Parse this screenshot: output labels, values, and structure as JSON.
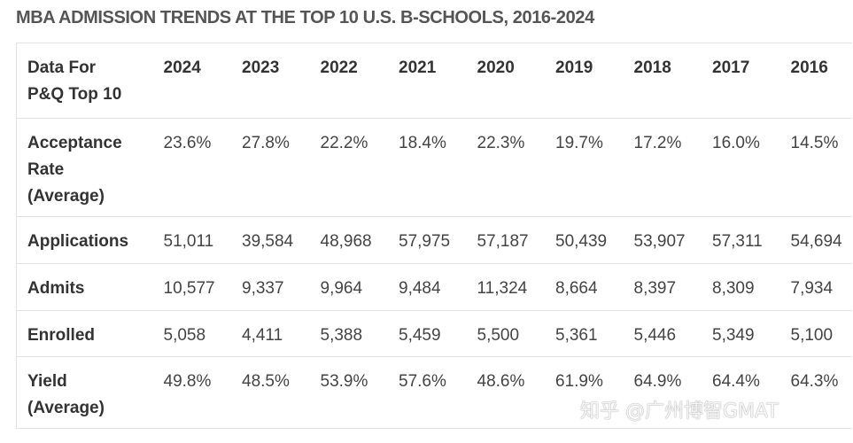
{
  "title": "MBA ADMISSION TRENDS AT THE TOP 10 U.S. B-SCHOOLS, 2016-2024",
  "table": {
    "header_label": [
      "Data For",
      "P&Q Top 10"
    ],
    "years": [
      "2024",
      "2023",
      "2022",
      "2021",
      "2020",
      "2019",
      "2018",
      "2017",
      "2016"
    ],
    "rows": [
      {
        "label": [
          "Acceptance",
          "Rate",
          "(Average)"
        ],
        "values": [
          "23.6%",
          "27.8%",
          "22.2%",
          "18.4%",
          "22.3%",
          "19.7%",
          "17.2%",
          "16.0%",
          "14.5%"
        ]
      },
      {
        "label": [
          "Applications"
        ],
        "values": [
          "51,011",
          "39,584",
          "48,968",
          "57,975",
          "57,187",
          "50,439",
          "53,907",
          "57,311",
          "54,694"
        ]
      },
      {
        "label": [
          "Admits"
        ],
        "values": [
          "10,577",
          "9,337",
          "9,964",
          "9,484",
          "11,324",
          "8,664",
          "8,397",
          "8,309",
          "7,934"
        ]
      },
      {
        "label": [
          "Enrolled"
        ],
        "values": [
          "5,058",
          "4,411",
          "5,388",
          "5,459",
          "5,500",
          "5,361",
          "5,446",
          "5,349",
          "5,100"
        ]
      },
      {
        "label": [
          "Yield",
          "(Average)"
        ],
        "values": [
          "49.8%",
          "48.5%",
          "53.9%",
          "57.6%",
          "48.6%",
          "61.9%",
          "64.9%",
          "64.4%",
          "64.3%"
        ]
      }
    ]
  },
  "watermark": "知乎 @广州博智GMAT"
}
